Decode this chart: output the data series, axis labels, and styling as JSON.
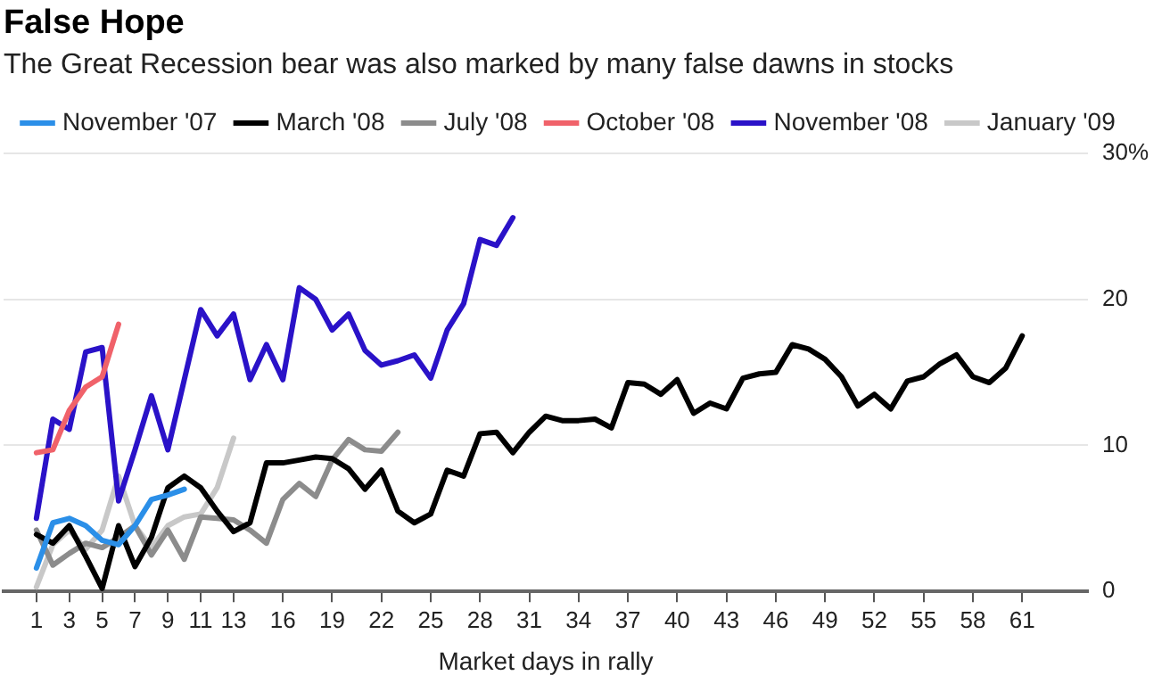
{
  "chart_data": {
    "type": "line",
    "title": "False Hope",
    "subtitle": "The Great Recession bear was also marked by many false dawns in stocks",
    "xlabel": "Market days in rally",
    "x": [
      1,
      2,
      3,
      4,
      5,
      6,
      7,
      8,
      9,
      10,
      11,
      12,
      13,
      14,
      15,
      16,
      17,
      18,
      19,
      20,
      21,
      22,
      23,
      24,
      25,
      26,
      27,
      28,
      29,
      30,
      31,
      32,
      33,
      34,
      35,
      36,
      37,
      38,
      39,
      40,
      41,
      42,
      43,
      44,
      45,
      46,
      47,
      48,
      49,
      50,
      51,
      52,
      53,
      54,
      55,
      56,
      57,
      58,
      59,
      60,
      61
    ],
    "series": [
      {
        "name": "November '07",
        "color": "#2b8fe8",
        "x": [
          1,
          2,
          3,
          4,
          5,
          6,
          7,
          8,
          9,
          10
        ],
        "values": [
          1.6,
          4.7,
          5.0,
          4.5,
          3.5,
          3.2,
          4.5,
          6.3,
          6.6,
          7.0
        ]
      },
      {
        "name": "March '08",
        "color": "#000000",
        "values": [
          3.9,
          3.3,
          4.5,
          2.4,
          0.2,
          4.5,
          1.7,
          3.7,
          7.1,
          7.9,
          7.1,
          5.5,
          4.1,
          4.7,
          8.8,
          8.8,
          9.0,
          9.2,
          9.1,
          8.4,
          7.0,
          8.3,
          5.5,
          4.7,
          5.3,
          8.3,
          7.9,
          10.8,
          10.9,
          9.5,
          10.9,
          12.0,
          11.7,
          11.7,
          11.8,
          11.2,
          14.3,
          14.2,
          13.5,
          14.5,
          12.2,
          12.9,
          12.5,
          14.6,
          14.9,
          15.0,
          16.9,
          16.6,
          15.9,
          14.7,
          12.7,
          13.5,
          12.5,
          14.4,
          14.7,
          15.6,
          16.2,
          14.7,
          14.3,
          15.3,
          17.5
        ]
      },
      {
        "name": "July '08",
        "color": "#8c8c8c",
        "x": [
          1,
          2,
          3,
          4,
          5,
          6,
          7,
          8,
          9,
          10,
          11,
          12,
          13,
          14,
          15,
          16,
          17,
          18,
          19,
          20,
          21,
          22,
          23
        ],
        "values": [
          4.2,
          1.8,
          2.6,
          3.3,
          3.0,
          3.7,
          4.5,
          2.5,
          4.2,
          2.2,
          5.1,
          5.0,
          4.9,
          4.2,
          3.3,
          6.3,
          7.4,
          6.5,
          9.0,
          10.4,
          9.7,
          9.6,
          10.9
        ]
      },
      {
        "name": "October '08",
        "color": "#f0626a",
        "x": [
          1,
          2,
          3,
          4,
          5,
          6
        ],
        "values": [
          9.5,
          9.7,
          12.4,
          14.0,
          14.7,
          18.3
        ]
      },
      {
        "name": "November '08",
        "color": "#2a12c8",
        "x": [
          1,
          2,
          3,
          4,
          5,
          6,
          7,
          8,
          9,
          10,
          11,
          12,
          13,
          14,
          15,
          16,
          17,
          18,
          19,
          20,
          21,
          22,
          23,
          24,
          25,
          26,
          27,
          28,
          29,
          30
        ],
        "values": [
          5.0,
          11.8,
          11.1,
          16.4,
          16.7,
          6.2,
          9.7,
          13.4,
          9.7,
          14.5,
          19.3,
          17.5,
          19.0,
          14.5,
          16.9,
          14.5,
          20.8,
          20.0,
          17.9,
          19.0,
          16.5,
          15.5,
          15.8,
          16.2,
          14.6,
          17.9,
          19.7,
          24.1,
          23.7,
          25.6
        ]
      },
      {
        "name": "January '09",
        "color": "#c8c8c8",
        "x": [
          1,
          2,
          3,
          4,
          5,
          6,
          7,
          8,
          9,
          10,
          11,
          12,
          13
        ],
        "values": [
          0.3,
          3.2,
          4.2,
          2.9,
          4.2,
          7.9,
          4.5,
          3.0,
          4.5,
          5.1,
          5.3,
          7.1,
          10.5
        ]
      }
    ],
    "xlim": [
      -1,
      65
    ],
    "xticks": [
      1,
      3,
      5,
      7,
      9,
      11,
      13,
      16,
      19,
      22,
      25,
      28,
      31,
      34,
      37,
      40,
      43,
      46,
      49,
      52,
      55,
      58,
      61
    ],
    "ylim": [
      0,
      30
    ],
    "yticks": [
      0,
      10,
      20,
      {
        "value": 30,
        "label": "30%"
      }
    ],
    "grid": "y",
    "legend": "top left",
    "line_style": "solid",
    "marker": "none"
  }
}
